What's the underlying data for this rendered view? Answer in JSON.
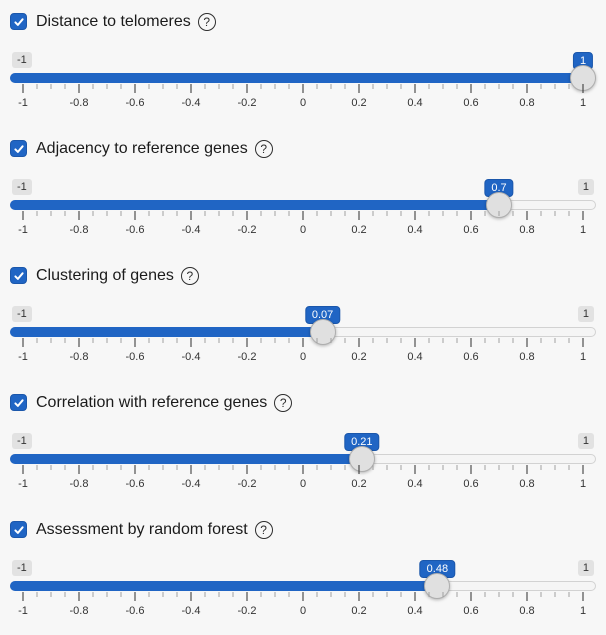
{
  "colors": {
    "accent": "#2065c4",
    "accent_border": "#1b57ab",
    "page_background": "#f7f7f7"
  },
  "slider_scale": {
    "min": -1,
    "max": 1,
    "tick_labels": [
      "-1",
      "-0.8",
      "-0.6",
      "-0.4",
      "-0.2",
      "0",
      "0.2",
      "0.4",
      "0.6",
      "0.8",
      "1"
    ],
    "minor_ticks_between": 3
  },
  "help_icon_glyph": "?",
  "sliders": [
    {
      "label": "Distance to telomeres",
      "checked": true,
      "value": 1,
      "value_label": "1",
      "min_label": "-1",
      "max_label": "1",
      "max_badge_visible": false
    },
    {
      "label": "Adjacency to reference genes",
      "checked": true,
      "value": 0.7,
      "value_label": "0.7",
      "min_label": "-1",
      "max_label": "1",
      "max_badge_visible": true
    },
    {
      "label": "Clustering of genes",
      "checked": true,
      "value": 0.07,
      "value_label": "0.07",
      "min_label": "-1",
      "max_label": "1",
      "max_badge_visible": true
    },
    {
      "label": "Correlation with reference genes",
      "checked": true,
      "value": 0.21,
      "value_label": "0.21",
      "min_label": "-1",
      "max_label": "1",
      "max_badge_visible": true
    },
    {
      "label": "Assessment by random forest",
      "checked": true,
      "value": 0.48,
      "value_label": "0.48",
      "min_label": "-1",
      "max_label": "1",
      "max_badge_visible": true
    }
  ]
}
